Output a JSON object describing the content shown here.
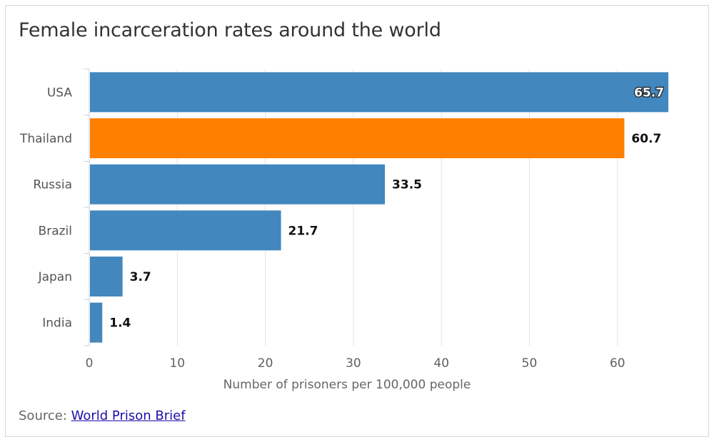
{
  "chart_data": {
    "type": "bar",
    "orientation": "horizontal",
    "title": "Female incarceration rates around the world",
    "categories": [
      "USA",
      "Thailand",
      "Russia",
      "Brazil",
      "Japan",
      "India"
    ],
    "values": [
      65.7,
      60.7,
      33.5,
      21.7,
      3.7,
      1.4
    ],
    "value_labels": [
      "65.7",
      "60.7",
      "33.5",
      "21.7",
      "3.7",
      "1.4"
    ],
    "colors": [
      "#4287be",
      "#ff7f00",
      "#4287be",
      "#4287be",
      "#4287be",
      "#4287be"
    ],
    "xlabel": "Number of prisoners per 100,000 people",
    "ylabel": "",
    "xlim": [
      0,
      66
    ],
    "xticks": [
      0,
      10,
      20,
      30,
      40,
      50,
      60
    ],
    "xtick_labels": [
      "0",
      "10",
      "20",
      "30",
      "40",
      "50",
      "60"
    ],
    "grid": true,
    "legend": "none"
  },
  "source": {
    "prefix": "Source: ",
    "link_text": "World Prison Brief"
  },
  "colors": {
    "bar_default": "#4287be",
    "bar_highlight": "#ff7f00",
    "grid": "#e3e3e3",
    "axis": "#c8d2e0"
  }
}
